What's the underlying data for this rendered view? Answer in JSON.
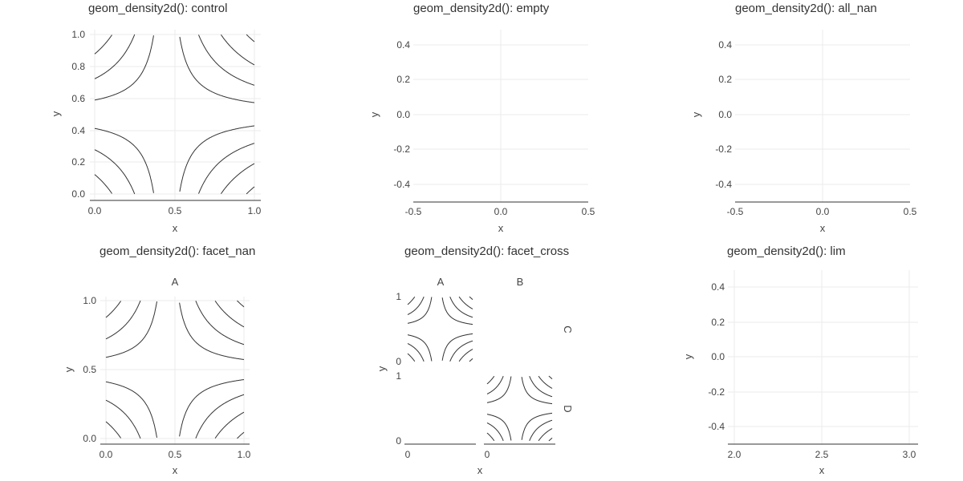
{
  "chart_data": [
    {
      "type": "contour",
      "title": "geom_density2d(): control",
      "xlabel": "x",
      "ylabel": "y",
      "xlim": [
        0,
        1
      ],
      "ylim": [
        0,
        1
      ],
      "xticks": [
        "0.0",
        "0.5",
        "1.0"
      ],
      "yticks": [
        "0.0",
        "0.2",
        "0.4",
        "0.6",
        "0.8",
        "1.0"
      ],
      "field": "saddle",
      "contour_levels": [
        -0.55,
        -0.44,
        -0.34,
        -0.25,
        -0.17,
        -0.1,
        -0.04,
        0.04,
        0.1,
        0.17,
        0.25,
        0.34,
        0.44,
        0.55
      ]
    },
    {
      "type": "empty",
      "title": "geom_density2d(): empty",
      "xlabel": "x",
      "ylabel": "y",
      "xlim": [
        -0.5,
        0.5
      ],
      "ylim": [
        -0.5,
        0.5
      ],
      "xticks": [
        "-0.5",
        "0.0",
        "0.5"
      ],
      "yticks": [
        "-0.4",
        "-0.2",
        "0.0",
        "0.2",
        "0.4"
      ]
    },
    {
      "type": "empty",
      "title": "geom_density2d(): all_nan",
      "xlabel": "x",
      "ylabel": "y",
      "xlim": [
        -0.5,
        0.5
      ],
      "ylim": [
        -0.5,
        0.5
      ],
      "xticks": [
        "-0.5",
        "0.0",
        "0.5"
      ],
      "yticks": [
        "-0.4",
        "-0.2",
        "0.0",
        "0.2",
        "0.4"
      ]
    },
    {
      "type": "contour",
      "title": "geom_density2d(): facet_nan",
      "xlabel": "x",
      "ylabel": "y",
      "facet_labels": [
        "A"
      ],
      "xlim": [
        0,
        1
      ],
      "ylim": [
        0,
        1
      ],
      "xticks": [
        "0.0",
        "0.5",
        "1.0"
      ],
      "yticks": [
        "0.0",
        "0.5",
        "1.0"
      ],
      "field": "saddle",
      "contour_levels": [
        -0.55,
        -0.44,
        -0.34,
        -0.25,
        -0.17,
        -0.1,
        -0.04,
        0.04,
        0.1,
        0.17,
        0.25,
        0.34,
        0.44,
        0.55
      ]
    },
    {
      "type": "contour",
      "title": "geom_density2d(): facet_cross",
      "xlabel": "x",
      "ylabel": "y",
      "col_facets": [
        "A",
        "B"
      ],
      "row_facets": [
        "C",
        "D"
      ],
      "xlim": [
        0,
        1
      ],
      "ylim": [
        0,
        1
      ],
      "xticks": [
        "0"
      ],
      "yticks": [
        "0",
        "1"
      ],
      "panels_with_data": [
        "A-C",
        "B-D"
      ],
      "field": "saddle",
      "contour_levels": [
        -0.55,
        -0.44,
        -0.34,
        -0.25,
        -0.17,
        -0.1,
        -0.04,
        0.04,
        0.1,
        0.17,
        0.25,
        0.34,
        0.44,
        0.55
      ]
    },
    {
      "type": "empty",
      "title": "geom_density2d(): lim",
      "xlabel": "x",
      "ylabel": "y",
      "xlim": [
        1.95,
        3.05
      ],
      "ylim": [
        -0.5,
        0.5
      ],
      "xticks": [
        "2.0",
        "2.5",
        "3.0"
      ],
      "yticks": [
        "-0.4",
        "-0.2",
        "0.0",
        "0.2",
        "0.4"
      ]
    }
  ]
}
